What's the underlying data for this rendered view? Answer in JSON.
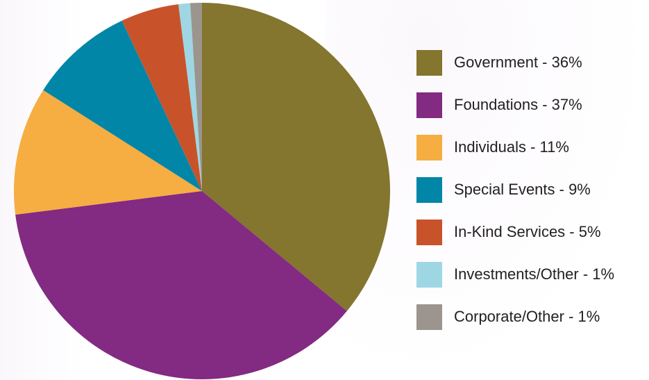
{
  "chart_data": {
    "type": "pie",
    "title": "",
    "legend_placement": "right",
    "slices": [
      {
        "label": "Government - 36%",
        "name": "Government",
        "value": 36,
        "color": "#84752f"
      },
      {
        "label": "Foundations - 37%",
        "name": "Foundations",
        "value": 37,
        "color": "#832a82"
      },
      {
        "label": "Individuals - 11%",
        "name": "Individuals",
        "value": 11,
        "color": "#f6ad42"
      },
      {
        "label": "Special Events - 9%",
        "name": "Special Events",
        "value": 9,
        "color": "#0286a7"
      },
      {
        "label": "In-Kind Services - 5%",
        "name": "In-Kind Services",
        "value": 5,
        "color": "#c8532a"
      },
      {
        "label": "Investments/Other - 1%",
        "name": "Investments/Other",
        "value": 1,
        "color": "#9ed7e3"
      },
      {
        "label": "Corporate/Other - 1%",
        "name": "Corporate/Other",
        "value": 1,
        "color": "#9b958e"
      }
    ]
  }
}
